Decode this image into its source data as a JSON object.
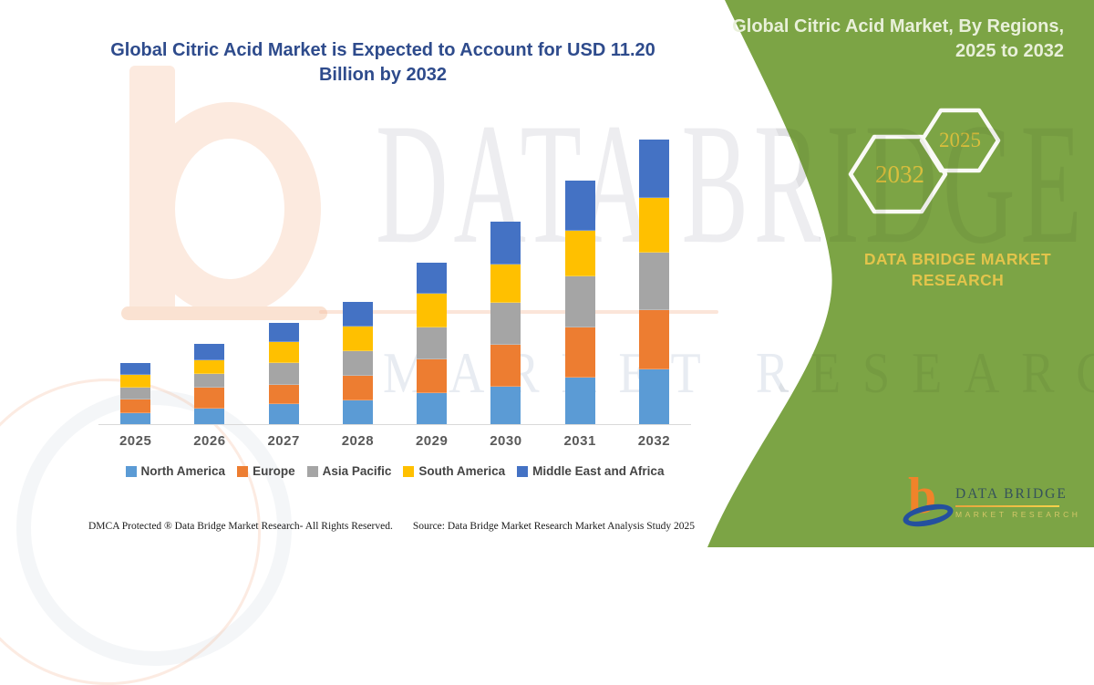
{
  "title": {
    "text": "Global Citric Acid Market is Expected to Account for USD 11.20 Billion by 2032"
  },
  "chart_data": {
    "type": "bar",
    "stacked": true,
    "title": "Global Citric Acid Market is Expected to Account for USD 11.20 Billion by 2032",
    "unit": "USD Billion",
    "xlabel": "",
    "ylabel": "",
    "ylim": [
      0,
      11.5
    ],
    "grid": false,
    "legend_position": "bottom",
    "categories": [
      "2025",
      "2026",
      "2027",
      "2028",
      "2029",
      "2030",
      "2031",
      "2032"
    ],
    "series": [
      {
        "name": "North America",
        "color": "#5B9BD5",
        "values": [
          0.45,
          0.62,
          0.78,
          0.93,
          1.24,
          1.48,
          1.84,
          2.15
        ]
      },
      {
        "name": "Europe",
        "color": "#ED7D31",
        "values": [
          0.54,
          0.82,
          0.78,
          0.97,
          1.32,
          1.66,
          1.98,
          2.35
        ]
      },
      {
        "name": "Asia Pacific",
        "color": "#A5A5A5",
        "values": [
          0.46,
          0.54,
          0.84,
          0.98,
          1.26,
          1.64,
          1.98,
          2.25
        ]
      },
      {
        "name": "South America",
        "color": "#FFC000",
        "values": [
          0.48,
          0.54,
          0.84,
          0.96,
          1.32,
          1.5,
          1.8,
          2.15
        ]
      },
      {
        "name": "Middle East and Africa",
        "color": "#4472C4",
        "values": [
          0.47,
          0.66,
          0.74,
          0.96,
          1.22,
          1.68,
          2.0,
          2.3
        ]
      }
    ],
    "totals": [
      2.4,
      3.18,
      3.98,
      4.8,
      6.36,
      7.96,
      9.6,
      11.2
    ]
  },
  "watermark": {
    "line1": "DATA BRIDGE",
    "line2": "MARKET RESEARCH"
  },
  "green_panel": {
    "title_line1": "Global Citric Acid Market, By Regions,",
    "title_line2": "2025 to 2032",
    "hexagon_large_label": "2032",
    "hexagon_small_label": "2025",
    "brand_text": "DATA BRIDGE MARKET RESEARCH",
    "colors": {
      "background": "#7CA445",
      "title_text": "#E9F0DA",
      "gold_text": "#D9BE3D",
      "brand_text": "#E2C44B"
    }
  },
  "logo": {
    "icon": "data-bridge-b-icon",
    "letter": "b",
    "name": "DATA BRIDGE",
    "subtext": "MARKET RESEARCH"
  },
  "footer": {
    "left": "DMCA Protected ® Data Bridge Market Research-  All Rights Reserved.",
    "right": "Source: Data Bridge Market Research  Market Analysis Study 2025"
  },
  "colors": {
    "title": "#2E4B8C",
    "axis_labels": "#595959",
    "legend_text": "#444444",
    "axis_line": "#D9D9D9"
  }
}
